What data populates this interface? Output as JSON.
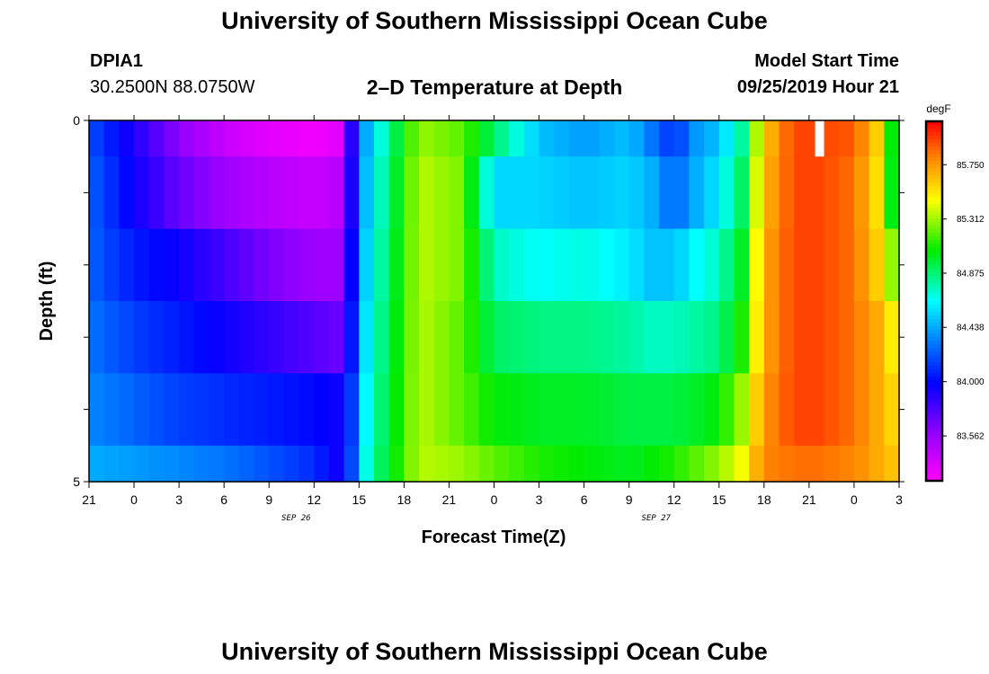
{
  "header": {
    "title": "University of Southern Mississippi Ocean Cube",
    "station_id": "DPIA1",
    "station_coords": "30.2500N 88.0750W",
    "plot_title": "2–D Temperature at Depth",
    "model_label": "Model Start Time",
    "model_time": "09/25/2019 Hour 21"
  },
  "footer": {
    "title": "University of Southern Mississippi Ocean Cube"
  },
  "chart_data": {
    "type": "heatmap",
    "title": "2–D Temperature at Depth",
    "xlabel": "Forecast Time(Z)",
    "ylabel": "Depth (ft)",
    "x_tick_labels": [
      "21",
      "0",
      "3",
      "6",
      "9",
      "12",
      "15",
      "18",
      "21",
      "0",
      "3",
      "6",
      "9",
      "12",
      "15",
      "18",
      "21",
      "0",
      "3"
    ],
    "x_tick_hours": [
      0,
      3,
      6,
      9,
      12,
      15,
      18,
      21,
      24,
      27,
      30,
      33,
      36,
      39,
      42,
      45,
      48,
      51,
      54
    ],
    "date_labels": [
      {
        "text": "SEP 26",
        "hour": 15
      },
      {
        "text": "SEP 27",
        "hour": 39
      }
    ],
    "y_tick_labels": [
      "0",
      "5"
    ],
    "ylim": [
      0,
      5
    ],
    "depth_layer_edges": [
      0,
      0.5,
      1.5,
      2.5,
      3.5,
      4.5,
      5
    ],
    "colorbar": {
      "unit": "degF",
      "labels": [
        "83.562",
        "84.000",
        "84.438",
        "84.875",
        "85.312",
        "85.750"
      ],
      "range": [
        83.2,
        86.1
      ]
    },
    "control_points_hours": [
      0,
      3,
      6,
      9,
      12,
      15,
      16.5,
      17.8,
      18.6,
      22,
      24.8,
      27,
      30,
      33,
      36,
      37.5,
      39,
      40.5,
      42,
      43.5,
      45,
      47,
      48.5,
      51,
      52.5,
      53.2,
      54
    ],
    "layers": [
      {
        "depth": "0-0.5",
        "temps": [
          84.2,
          83.9,
          83.6,
          83.4,
          83.3,
          83.25,
          83.3,
          84.05,
          84.5,
          85.3,
          85.2,
          84.9,
          84.5,
          84.4,
          84.5,
          84.3,
          84.1,
          84.4,
          84.5,
          84.8,
          85.6,
          85.95,
          85.95,
          85.9,
          85.6,
          85.2,
          84.8
        ]
      },
      {
        "depth": "0.5-1.5",
        "temps": [
          84.25,
          83.95,
          83.7,
          83.55,
          83.45,
          83.4,
          83.45,
          84.05,
          84.55,
          85.35,
          85.25,
          84.55,
          84.55,
          84.5,
          84.55,
          84.45,
          84.25,
          84.45,
          84.6,
          84.9,
          85.65,
          85.95,
          85.95,
          85.85,
          85.55,
          85.1,
          84.9
        ]
      },
      {
        "depth": "1.5-2.5",
        "temps": [
          84.25,
          84.05,
          83.95,
          83.8,
          83.65,
          83.55,
          83.55,
          84.1,
          84.6,
          85.35,
          85.25,
          84.75,
          84.65,
          84.7,
          84.6,
          84.5,
          84.5,
          84.65,
          84.75,
          85.0,
          85.7,
          85.95,
          85.95,
          85.85,
          85.6,
          85.35,
          85.2
        ]
      },
      {
        "depth": "2.5-3.5",
        "temps": [
          84.3,
          84.15,
          84.05,
          83.95,
          83.85,
          83.75,
          83.7,
          84.15,
          84.65,
          85.35,
          85.2,
          84.9,
          84.85,
          84.85,
          84.8,
          84.75,
          84.75,
          84.8,
          84.85,
          85.1,
          85.7,
          85.95,
          85.95,
          85.85,
          85.7,
          85.55,
          85.45
        ]
      },
      {
        "depth": "3.5-4.5",
        "temps": [
          84.35,
          84.25,
          84.15,
          84.1,
          84.05,
          84.0,
          83.95,
          84.2,
          84.7,
          85.35,
          85.2,
          85.05,
          85.0,
          85.0,
          84.95,
          84.95,
          84.95,
          85.0,
          85.05,
          85.3,
          85.75,
          85.95,
          85.95,
          85.85,
          85.7,
          85.6,
          85.55
        ]
      },
      {
        "depth": "4.5-5",
        "temps": [
          84.45,
          84.4,
          84.35,
          84.3,
          84.2,
          84.1,
          83.95,
          84.25,
          84.75,
          85.35,
          85.3,
          85.2,
          85.1,
          85.05,
          85.0,
          85.05,
          85.1,
          85.2,
          85.3,
          85.45,
          85.8,
          85.85,
          85.85,
          85.8,
          85.7,
          85.65,
          85.6
        ]
      }
    ]
  }
}
